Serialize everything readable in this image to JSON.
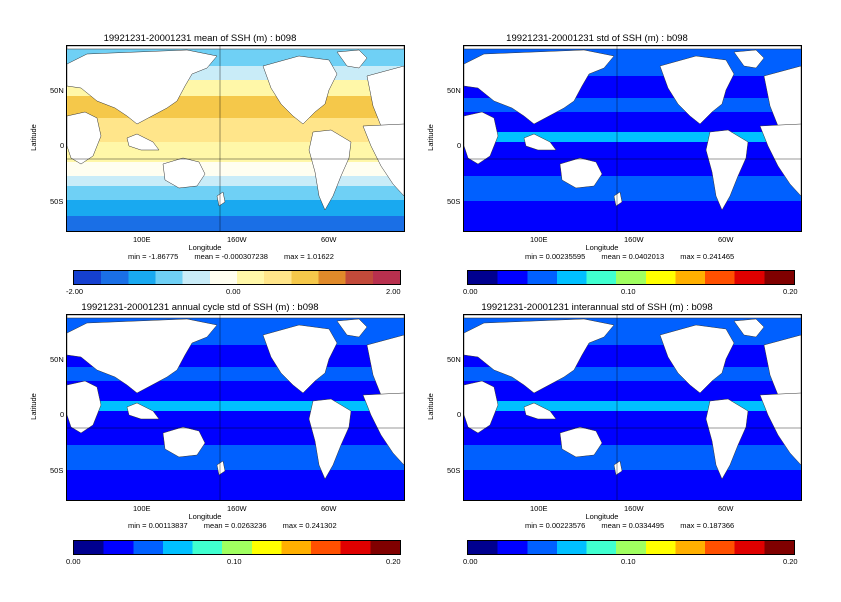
{
  "axis": {
    "ylabel": "Latitude",
    "xlabel": "Longitude",
    "yticks": [
      "50N",
      "0",
      "50S"
    ],
    "xticks": [
      "100E",
      "160W",
      "60W"
    ]
  },
  "panels": [
    {
      "id": "mean",
      "title": "19921231-20001231 mean of SSH (m) : b098",
      "min": "min = -1.86775",
      "mean": "mean = -0.000307238",
      "max": "max = 1.01622",
      "cbar_labels": [
        "-2.00",
        "0.00",
        "2.00"
      ],
      "palette": "diverging",
      "colors": [
        "#1540d0",
        "#1a6fe6",
        "#19a9f0",
        "#6fd0f5",
        "#c9ecf8",
        "#fffef0",
        "#fff7a8",
        "#ffe58a",
        "#f5c84a",
        "#e08a2a",
        "#c24a3a",
        "#b8304e"
      ]
    },
    {
      "id": "std",
      "title": "19921231-20001231 std of SSH (m) : b098",
      "min": "min = 0.00235595",
      "mean": "mean = 0.0402013",
      "max": "max = 0.241465",
      "cbar_labels": [
        "0.00",
        "0.10",
        "0.20"
      ],
      "palette": "jet",
      "colors": [
        "#00008f",
        "#0000ff",
        "#0060ff",
        "#00c0ff",
        "#40ffd0",
        "#a0ff60",
        "#ffff00",
        "#ffb000",
        "#ff5000",
        "#e00000",
        "#800000"
      ]
    },
    {
      "id": "annual",
      "title": "19921231-20001231 annual cycle std of SSH (m) : b098",
      "min": "min = 0.00113837",
      "mean": "mean = 0.0263236",
      "max": "max = 0.241302",
      "cbar_labels": [
        "0.00",
        "0.10",
        "0.20"
      ],
      "palette": "jet",
      "colors": [
        "#00008f",
        "#0000ff",
        "#0060ff",
        "#00c0ff",
        "#40ffd0",
        "#a0ff60",
        "#ffff00",
        "#ffb000",
        "#ff5000",
        "#e00000",
        "#800000"
      ]
    },
    {
      "id": "interannual",
      "title": "19921231-20001231 interannual std of SSH (m) : b098",
      "min": "min = 0.00223576",
      "mean": "mean = 0.0334495",
      "max": "max = 0.187366",
      "cbar_labels": [
        "0.00",
        "0.10",
        "0.20"
      ],
      "palette": "jet",
      "colors": [
        "#00008f",
        "#0000ff",
        "#0060ff",
        "#00c0ff",
        "#40ffd0",
        "#a0ff60",
        "#ffff00",
        "#ffb000",
        "#ff5000",
        "#e00000",
        "#800000"
      ]
    }
  ]
}
